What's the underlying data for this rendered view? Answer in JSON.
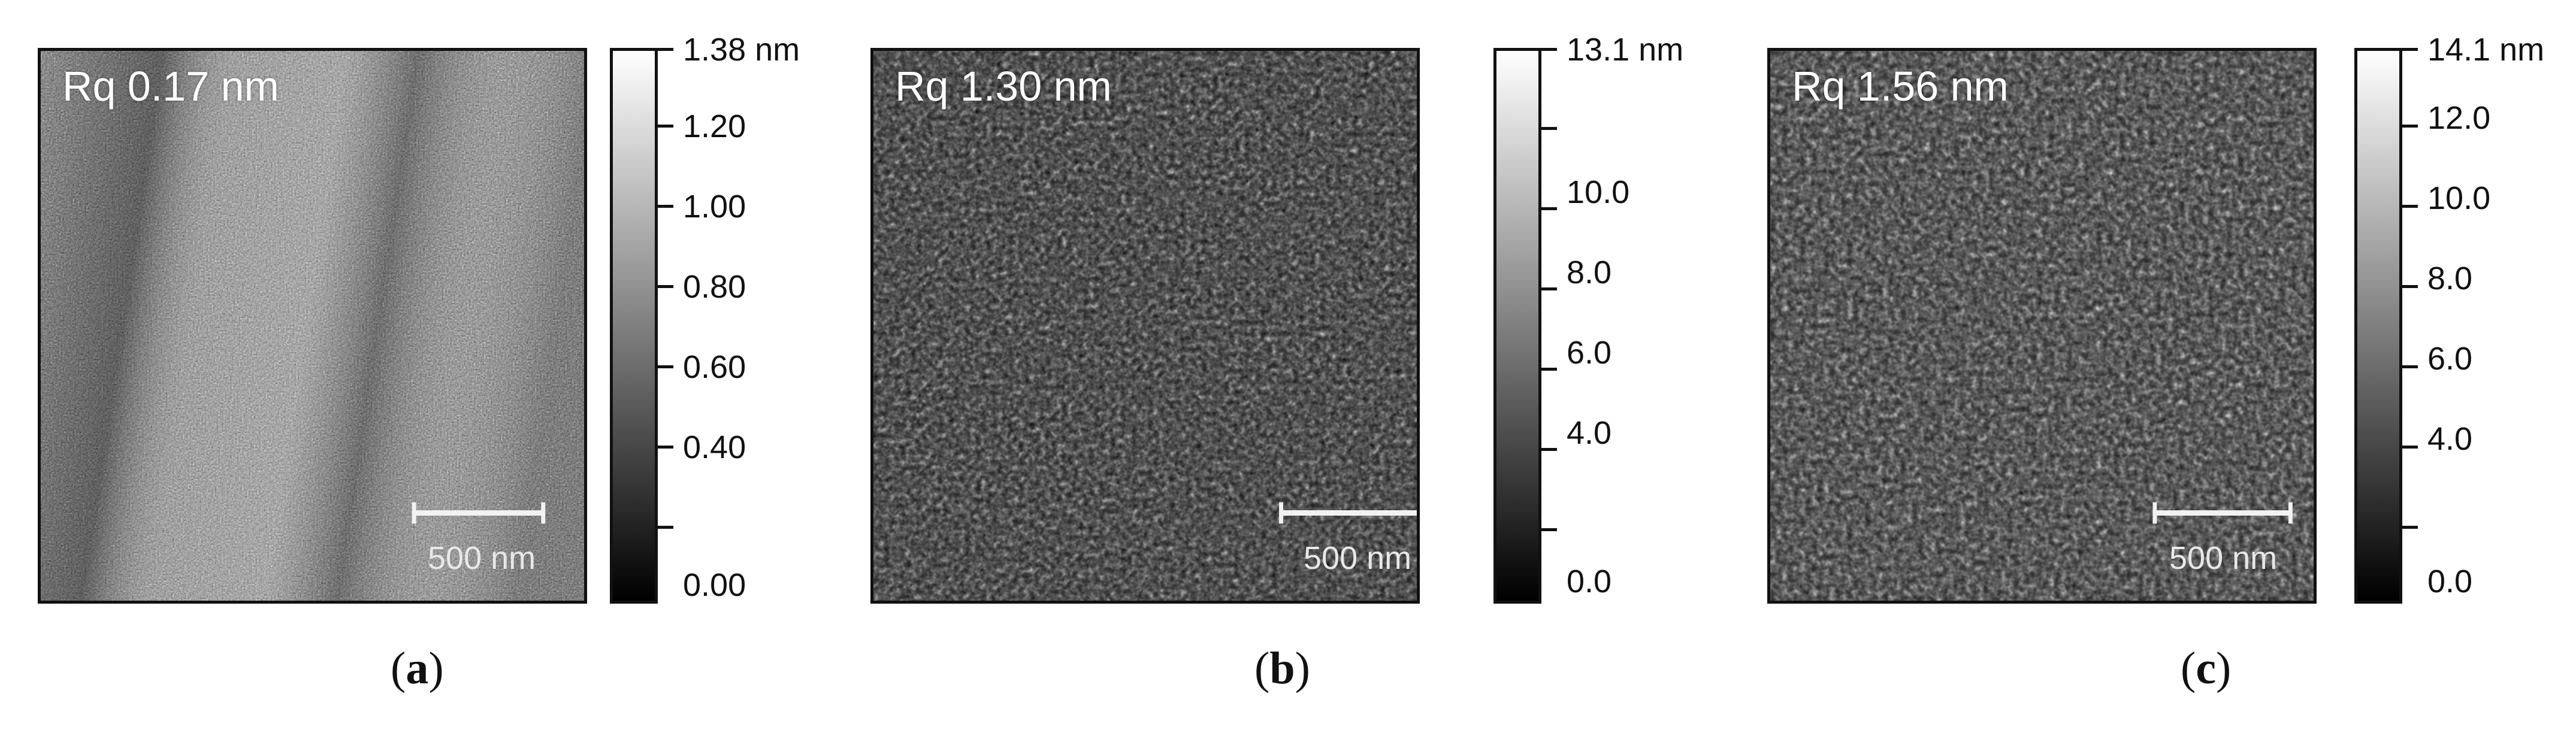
{
  "panels": [
    {
      "id": "a",
      "rq_label": "Rq 0.17 nm",
      "scale_bar_label": "500 nm",
      "colorbar": {
        "max_label": "1.38 nm",
        "ticks": [
          "1.38 nm",
          "1.20",
          "1.00",
          "0.80",
          "0.60",
          "0.40",
          "",
          "0.00"
        ]
      },
      "caption": {
        "open": "(",
        "letter": "a",
        "close": ")"
      }
    },
    {
      "id": "b",
      "rq_label": "Rq 1.30 nm",
      "scale_bar_label": "500 nm",
      "colorbar": {
        "max_label": "13.1 nm",
        "ticks": [
          "13.1 nm",
          "",
          "10.0",
          "8.0",
          "6.0",
          "4.0",
          "",
          "0.0"
        ]
      },
      "caption": {
        "open": "(",
        "letter": "b",
        "close": ")"
      }
    },
    {
      "id": "c",
      "rq_label": "Rq 1.56 nm",
      "scale_bar_label": "500 nm",
      "colorbar": {
        "max_label": "14.1 nm",
        "ticks": [
          "14.1 nm",
          "12.0",
          "10.0",
          "8.0",
          "6.0",
          "4.0",
          "",
          "0.0"
        ]
      },
      "caption": {
        "open": "(",
        "letter": "c",
        "close": ")"
      }
    }
  ]
}
